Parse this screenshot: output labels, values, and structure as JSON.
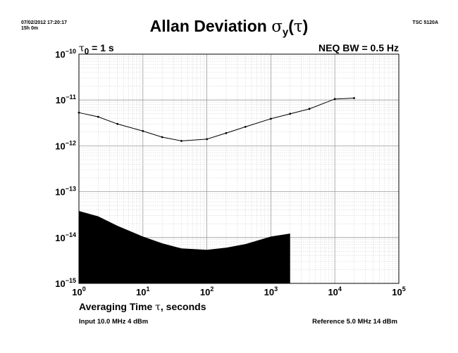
{
  "header": {
    "timestamp_line1": "07/02/2012 17:20:17",
    "timestamp_line2": "15h 0m",
    "instrument": "TSC 5120A"
  },
  "title": {
    "main": "Allan Deviation ",
    "symbol": "σ",
    "subscript": "y",
    "paren_open": "(",
    "tau": "τ",
    "paren_close": ")"
  },
  "annotations": {
    "tau0_symbol": "τ",
    "tau0_subscript": "0",
    "tau0_value": " = 1 s",
    "neq_bw": "NEQ BW = 0.5 Hz"
  },
  "footer": {
    "input": "Input 10.0 MHz 4 dBm",
    "reference": "Reference 5.0 MHz 14 dBm"
  },
  "chart_data": {
    "type": "line",
    "title": "Allan Deviation σy(τ)",
    "xlabel_prefix": "Averaging Time ",
    "xlabel_symbol": "τ",
    "xlabel_suffix": ", seconds",
    "xscale": "log",
    "yscale": "log",
    "xlim": [
      1,
      100000
    ],
    "ylim": [
      1e-15,
      1e-10
    ],
    "grid": true,
    "x_tick_labels": [
      {
        "base": "10",
        "exp": "0",
        "value": 1
      },
      {
        "base": "10",
        "exp": "1",
        "value": 10
      },
      {
        "base": "10",
        "exp": "2",
        "value": 100
      },
      {
        "base": "10",
        "exp": "3",
        "value": 1000
      },
      {
        "base": "10",
        "exp": "4",
        "value": 10000
      },
      {
        "base": "10",
        "exp": "5",
        "value": 100000
      }
    ],
    "y_tick_labels": [
      {
        "base": "10",
        "exp": "−10",
        "value": 1e-10
      },
      {
        "base": "10",
        "exp": "−11",
        "value": 1e-11
      },
      {
        "base": "10",
        "exp": "−12",
        "value": 1e-12
      },
      {
        "base": "10",
        "exp": "−13",
        "value": 1e-13
      },
      {
        "base": "10",
        "exp": "−14",
        "value": 1e-14
      },
      {
        "base": "10",
        "exp": "−15",
        "value": 1e-15
      }
    ],
    "series": [
      {
        "kind": "line",
        "color": "#000000",
        "points": [
          {
            "x": 1,
            "y": 5.3e-12
          },
          {
            "x": 2,
            "y": 4.3e-12
          },
          {
            "x": 4,
            "y": 3e-12
          },
          {
            "x": 10,
            "y": 2.1e-12
          },
          {
            "x": 20,
            "y": 1.55e-12
          },
          {
            "x": 40,
            "y": 1.28e-12
          },
          {
            "x": 100,
            "y": 1.4e-12
          },
          {
            "x": 200,
            "y": 1.9e-12
          },
          {
            "x": 400,
            "y": 2.6e-12
          },
          {
            "x": 1000,
            "y": 3.9e-12
          },
          {
            "x": 2000,
            "y": 5e-12
          },
          {
            "x": 4000,
            "y": 6.4e-12
          },
          {
            "x": 10000,
            "y": 1.05e-11
          },
          {
            "x": 20000,
            "y": 1.1e-11
          }
        ]
      },
      {
        "kind": "noise-floor-area",
        "color": "#000000",
        "points": [
          {
            "x": 1,
            "y": 3.8e-14
          },
          {
            "x": 2,
            "y": 2.9e-14
          },
          {
            "x": 4,
            "y": 1.8e-14
          },
          {
            "x": 10,
            "y": 1.05e-14
          },
          {
            "x": 20,
            "y": 7.5e-15
          },
          {
            "x": 40,
            "y": 5.8e-15
          },
          {
            "x": 100,
            "y": 5.4e-15
          },
          {
            "x": 200,
            "y": 6e-15
          },
          {
            "x": 400,
            "y": 7.2e-15
          },
          {
            "x": 1000,
            "y": 1.05e-14
          },
          {
            "x": 2000,
            "y": 1.22e-14
          }
        ]
      }
    ]
  }
}
